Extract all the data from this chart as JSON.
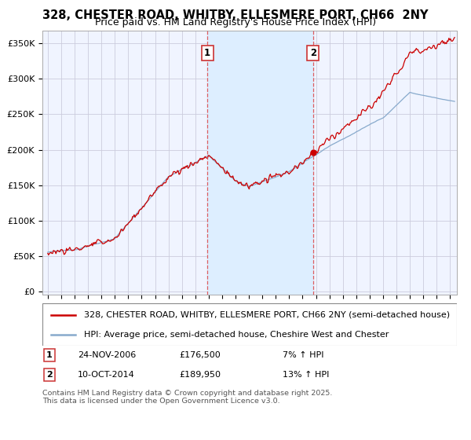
{
  "title": "328, CHESTER ROAD, WHITBY, ELLESMERE PORT, CH66  2NY",
  "subtitle": "Price paid vs. HM Land Registry's House Price Index (HPI)",
  "ylabel_ticks": [
    0,
    50000,
    100000,
    150000,
    200000,
    250000,
    300000,
    350000
  ],
  "ylabel_labels": [
    "£0",
    "£50K",
    "£100K",
    "£150K",
    "£200K",
    "£250K",
    "£300K",
    "£350K"
  ],
  "xlim_start": 1994.6,
  "xlim_end": 2025.5,
  "ylim_min": -5000,
  "ylim_max": 368000,
  "marker1_x": 2006.9,
  "marker2_x": 2014.78,
  "marker1_label": "1",
  "marker2_label": "2",
  "marker1_date": "24-NOV-2006",
  "marker1_price": "£176,500",
  "marker1_hpi": "7% ↑ HPI",
  "marker2_date": "10-OCT-2014",
  "marker2_price": "£189,950",
  "marker2_hpi": "13% ↑ HPI",
  "line_color_red": "#cc0000",
  "line_color_blue": "#88aacc",
  "shade_color": "#ddeeff",
  "dashed_color": "#dd4444",
  "legend_label1": "328, CHESTER ROAD, WHITBY, ELLESMERE PORT, CH66 2NY (semi-detached house)",
  "legend_label2": "HPI: Average price, semi-detached house, Cheshire West and Chester",
  "footer": "Contains HM Land Registry data © Crown copyright and database right 2025.\nThis data is licensed under the Open Government Licence v3.0.",
  "background_color": "#f0f4ff",
  "grid_color": "#ccccdd",
  "title_fontsize": 10.5,
  "subtitle_fontsize": 9,
  "tick_fontsize": 8,
  "legend_fontsize": 8
}
